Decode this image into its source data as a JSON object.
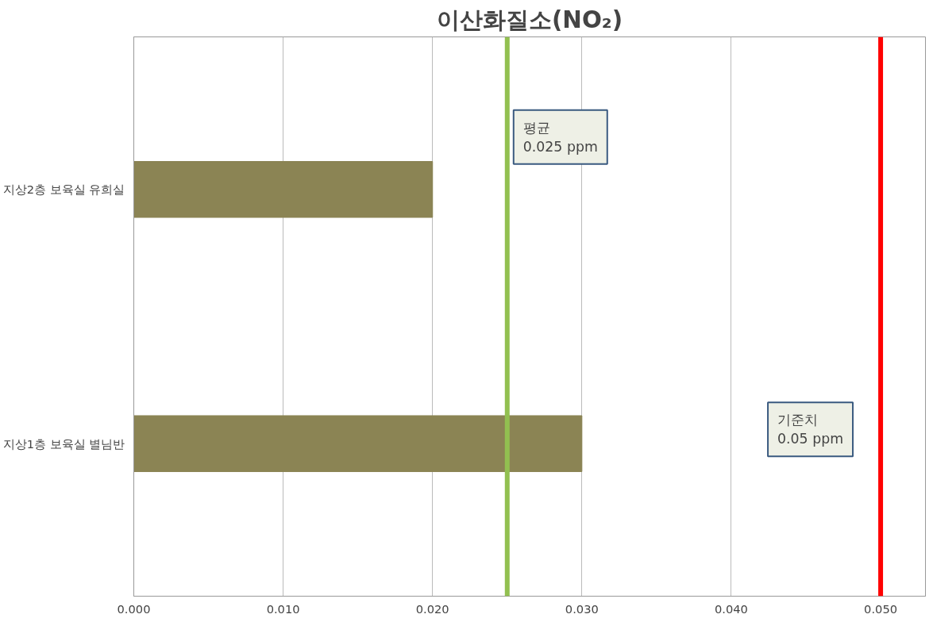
{
  "chart_data": {
    "type": "bar",
    "orientation": "horizontal",
    "title": "이산화질소(NO₂)",
    "categories": [
      "지상2층 보육실 유희실",
      "지상1층 보육실 별님반"
    ],
    "values": [
      0.02,
      0.03
    ],
    "color": "#8b8454",
    "xlim": [
      0,
      0.053
    ],
    "xticks": [
      {
        "value": 0,
        "label": "0.000"
      },
      {
        "value": 0.01,
        "label": "0.010"
      },
      {
        "value": 0.02,
        "label": "0.020"
      },
      {
        "value": 0.03,
        "label": "0.030"
      },
      {
        "value": 0.04,
        "label": "0.040"
      },
      {
        "value": 0.05,
        "label": "0.050"
      }
    ],
    "grid": "x",
    "ref_lines": [
      {
        "axis": "x",
        "value": 0.025,
        "label": "평균\n0.025 ppm",
        "color": "#92c050"
      },
      {
        "axis": "x",
        "value": 0.05,
        "label": "기준치\n0.05 ppm",
        "color": "#ff0000"
      }
    ]
  }
}
